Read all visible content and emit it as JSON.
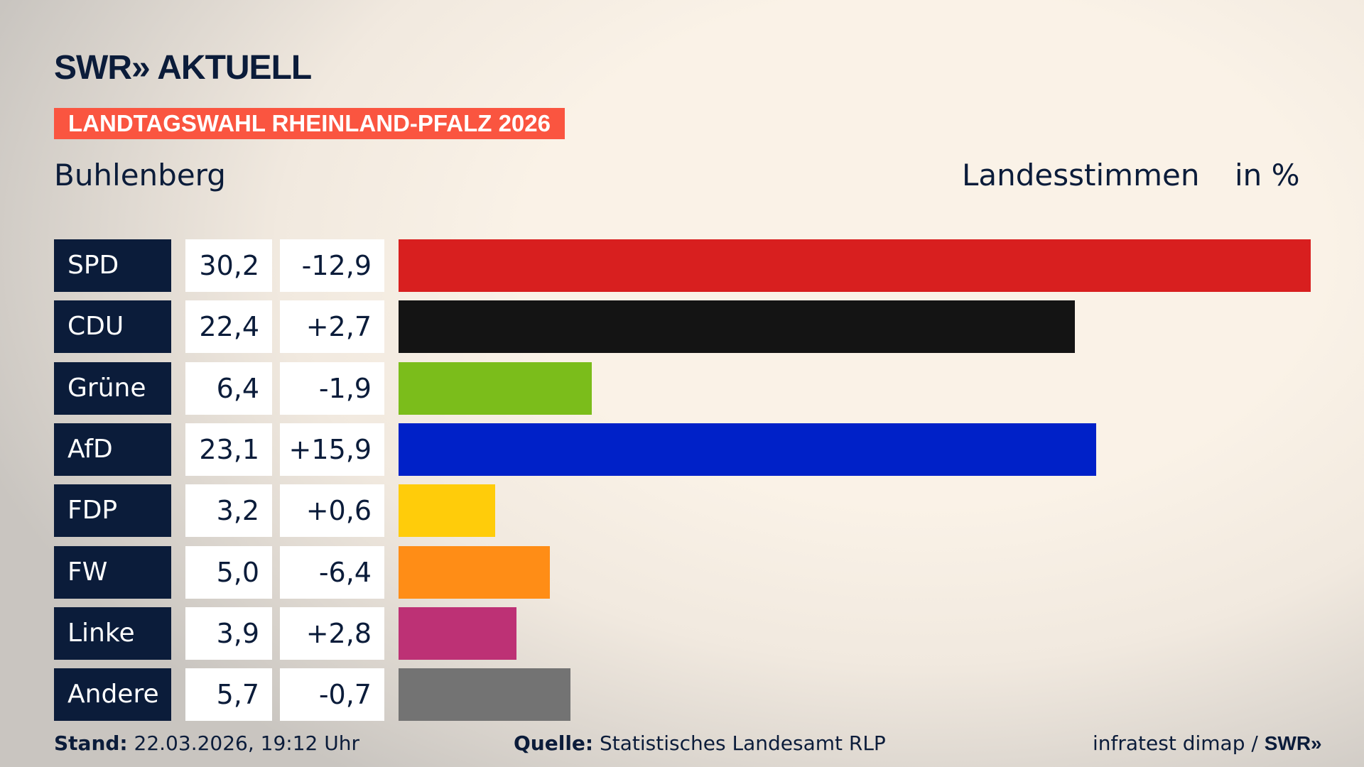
{
  "header": {
    "logo": "SWR» AKTUELL",
    "banner": "LANDTAGSWAHL RHEINLAND-PFALZ 2026",
    "region": "Buhlenberg",
    "measure": "Landesstimmen",
    "unit": "in %"
  },
  "chart_data": {
    "type": "bar",
    "orientation": "horizontal",
    "title": "Landesstimmen",
    "unit": "in %",
    "categories": [
      "SPD",
      "CDU",
      "Grüne",
      "AfD",
      "FDP",
      "FW",
      "Linke",
      "Andere"
    ],
    "values": [
      30.2,
      22.4,
      6.4,
      23.1,
      3.2,
      5.0,
      3.9,
      5.7
    ],
    "value_labels": [
      "30,2",
      "22,4",
      "6,4",
      "23,1",
      "3,2",
      "5,0",
      "3,9",
      "5,7"
    ],
    "diff_labels": [
      "-12,9",
      "+2,7",
      "-1,9",
      "+15,9",
      "+0,6",
      "-6,4",
      "+2,8",
      "-0,7"
    ],
    "diffs": [
      -12.9,
      2.7,
      -1.9,
      15.9,
      0.6,
      -6.4,
      2.8,
      -0.7
    ],
    "colors": [
      "#d81f1f",
      "#141414",
      "#7bbd1b",
      "#0021c8",
      "#ffcc0a",
      "#ff8d16",
      "#bd3175",
      "#737373"
    ]
  },
  "footer": {
    "stand_label": "Stand:",
    "stand_value": "22.03.2026, 19:12 Uhr",
    "source_label": "Quelle:",
    "source_value": "Statistisches Landesamt RLP",
    "credit": "infratest dimap / ",
    "credit_logo": "SWR»"
  }
}
